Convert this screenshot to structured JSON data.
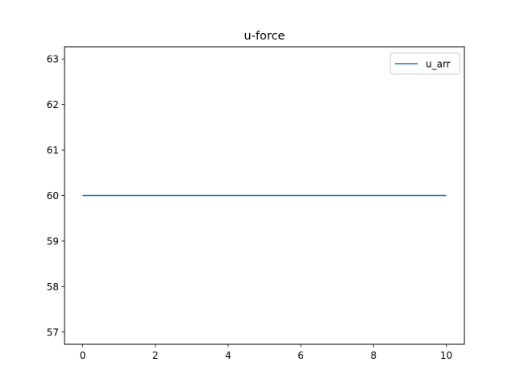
{
  "chart_data": {
    "type": "line",
    "title": "u-force",
    "xlabel": "",
    "ylabel": "",
    "xlim": [
      -0.5,
      10.5
    ],
    "ylim": [
      56.73,
      63.27
    ],
    "xticks": [
      0,
      2,
      4,
      6,
      8,
      10
    ],
    "yticks": [
      57,
      58,
      59,
      60,
      61,
      62,
      63
    ],
    "grid": false,
    "legend_position": "upper right",
    "series": [
      {
        "name": "u_arr",
        "color": "#1f77b4",
        "x": [
          0,
          10
        ],
        "y": [
          60,
          60
        ]
      }
    ]
  }
}
